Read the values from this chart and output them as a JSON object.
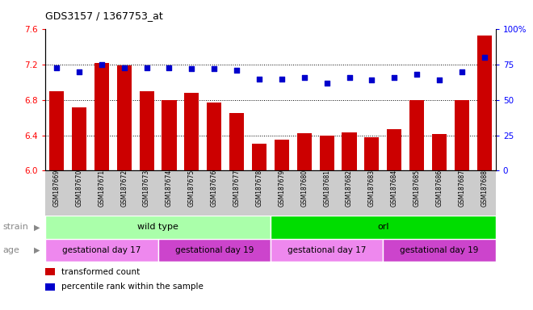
{
  "title": "GDS3157 / 1367753_at",
  "samples": [
    "GSM187669",
    "GSM187670",
    "GSM187671",
    "GSM187672",
    "GSM187673",
    "GSM187674",
    "GSM187675",
    "GSM187676",
    "GSM187677",
    "GSM187678",
    "GSM187679",
    "GSM187680",
    "GSM187681",
    "GSM187682",
    "GSM187683",
    "GSM187684",
    "GSM187685",
    "GSM187686",
    "GSM187687",
    "GSM187688"
  ],
  "bar_values": [
    6.9,
    6.72,
    7.22,
    7.19,
    6.9,
    6.8,
    6.88,
    6.77,
    6.65,
    6.3,
    6.35,
    6.42,
    6.4,
    6.43,
    6.38,
    6.47,
    6.8,
    6.41,
    6.8,
    7.53
  ],
  "percentile_values": [
    73,
    70,
    75,
    73,
    73,
    73,
    72,
    72,
    71,
    65,
    65,
    66,
    62,
    66,
    64,
    66,
    68,
    64,
    70,
    80
  ],
  "ylim_left": [
    6.0,
    7.6
  ],
  "ylim_right": [
    0,
    100
  ],
  "yticks_left": [
    6.0,
    6.4,
    6.8,
    7.2,
    7.6
  ],
  "yticks_right": [
    0,
    25,
    50,
    75,
    100
  ],
  "ytick_right_labels": [
    "0",
    "25",
    "50",
    "75",
    "100%"
  ],
  "bar_color": "#cc0000",
  "dot_color": "#0000cc",
  "grid_lines": [
    6.4,
    6.8,
    7.2
  ],
  "strain_groups": [
    {
      "label": "wild type",
      "start": 0,
      "end": 10,
      "color": "#aaffaa"
    },
    {
      "label": "orl",
      "start": 10,
      "end": 20,
      "color": "#00dd00"
    }
  ],
  "age_groups": [
    {
      "label": "gestational day 17",
      "start": 0,
      "end": 5,
      "color": "#ee88ee"
    },
    {
      "label": "gestational day 19",
      "start": 5,
      "end": 10,
      "color": "#cc44cc"
    },
    {
      "label": "gestational day 17",
      "start": 10,
      "end": 15,
      "color": "#ee88ee"
    },
    {
      "label": "gestational day 19",
      "start": 15,
      "end": 20,
      "color": "#cc44cc"
    }
  ],
  "legend_items": [
    {
      "label": "transformed count",
      "color": "#cc0000"
    },
    {
      "label": "percentile rank within the sample",
      "color": "#0000cc"
    }
  ],
  "strain_label": "strain",
  "age_label": "age",
  "xtick_bg_color": "#cccccc",
  "label_color": "#888888",
  "fig_width": 6.6,
  "fig_height": 3.84,
  "dpi": 100
}
